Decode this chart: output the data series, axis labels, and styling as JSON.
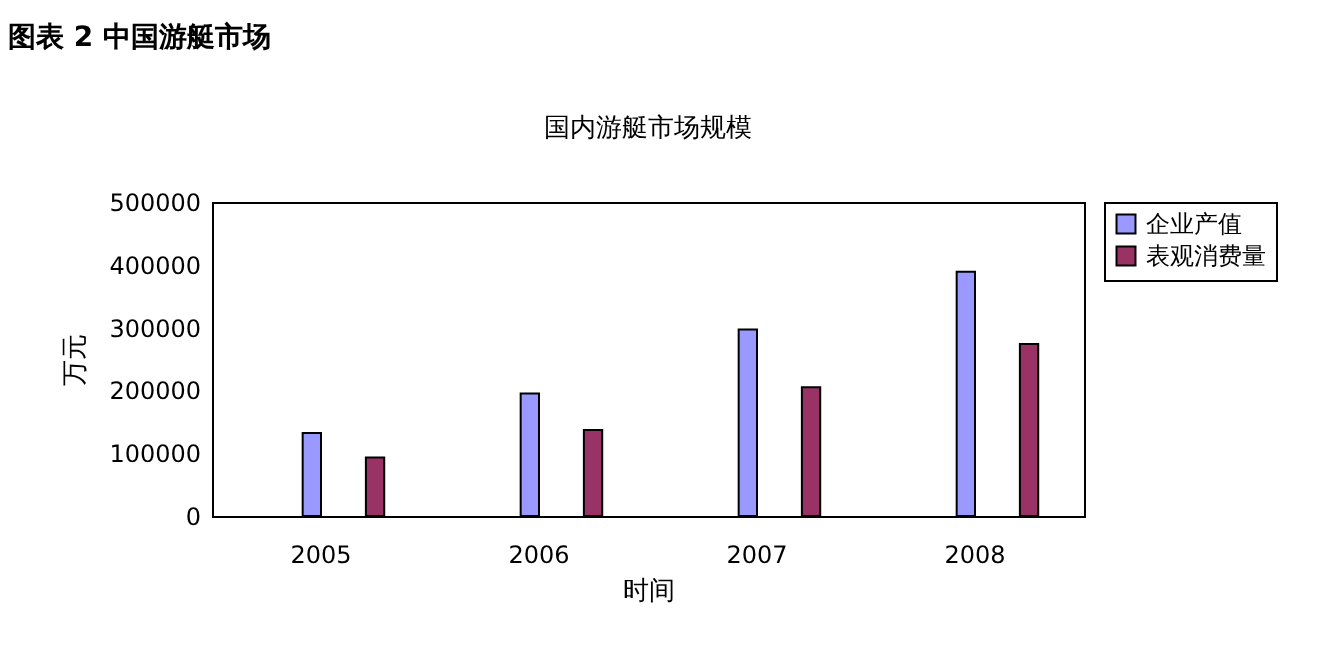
{
  "chart_data": {
    "type": "bar",
    "title": "国内游艇市场规模",
    "xlabel": "时间",
    "ylabel": "万元",
    "annotations": [
      "图表 2 中国游艇市场"
    ],
    "categories": [
      "2005",
      "2006",
      "2007",
      "2008"
    ],
    "series": [
      {
        "name": "企业产值",
        "color": "#9999ff",
        "values": [
          132000,
          195000,
          297000,
          389000
        ]
      },
      {
        "name": "表观消费量",
        "color": "#993366",
        "values": [
          93000,
          137000,
          205000,
          274000
        ]
      }
    ],
    "ylim": [
      0,
      500000
    ],
    "yticks": [
      0,
      100000,
      200000,
      300000,
      400000,
      500000
    ],
    "legend": "right"
  }
}
